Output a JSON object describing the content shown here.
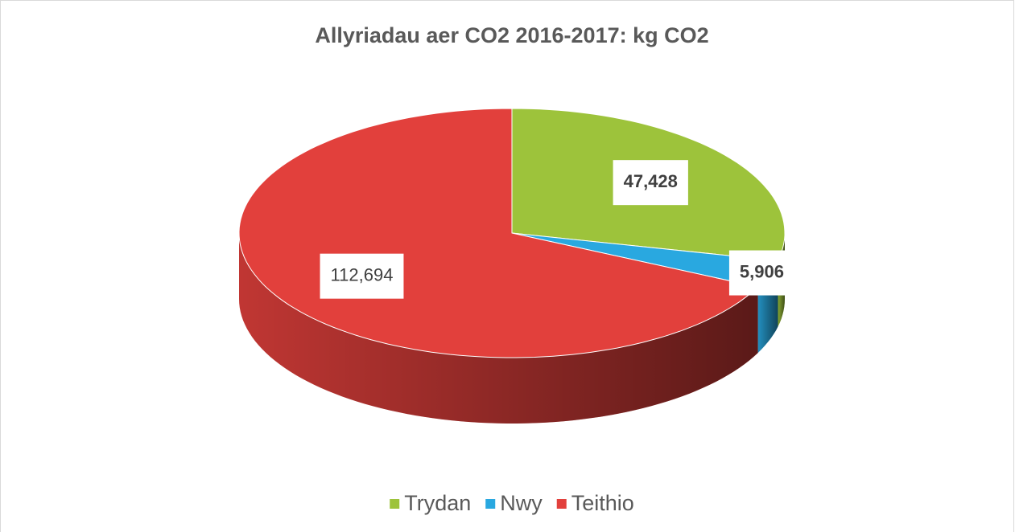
{
  "chart_data": {
    "type": "pie",
    "title": "Allyriadau aer CO2 2016-2017: kg CO2",
    "categories": [
      "Trydan",
      "Nwy",
      "Teithio"
    ],
    "values": [
      47428,
      5906,
      112694
    ],
    "value_labels": [
      "47,428",
      "5,906",
      "112,694"
    ],
    "colors": [
      "#9dc33b",
      "#29a8e0",
      "#e2403c"
    ],
    "legend": "bottom"
  }
}
